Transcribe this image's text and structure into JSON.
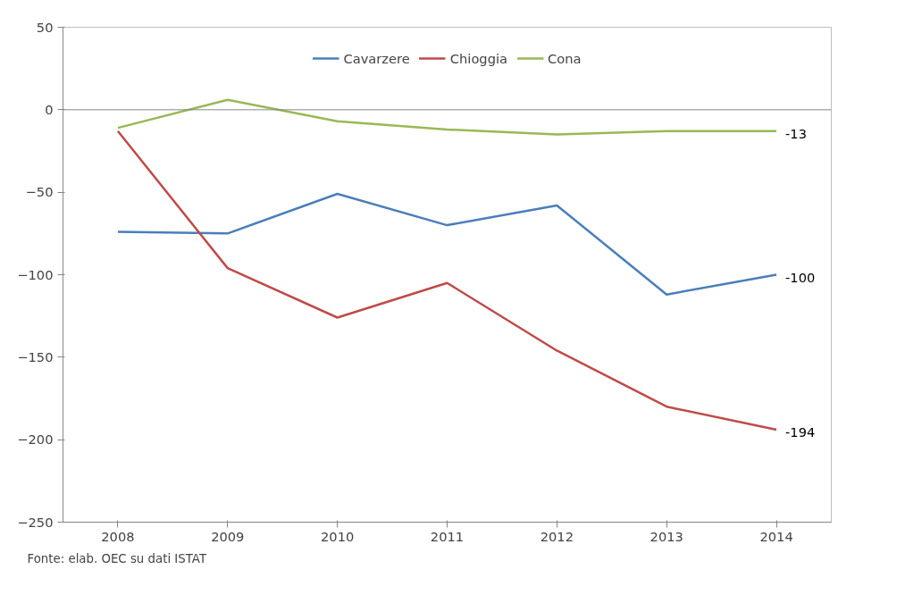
{
  "chart_data": {
    "type": "line",
    "categories": [
      "2008",
      "2009",
      "2010",
      "2011",
      "2012",
      "2013",
      "2014"
    ],
    "series": [
      {
        "name": "Cavarzere",
        "color": "#4a7ebb",
        "values": [
          -74,
          -75,
          -51,
          -70,
          -58,
          -112,
          -100
        ],
        "value_labels": [
          null,
          null,
          null,
          null,
          null,
          null,
          "-100"
        ]
      },
      {
        "name": "Chioggia",
        "color": "#be4b48",
        "values": [
          -13,
          -96,
          -126,
          -105,
          -146,
          -180,
          -194
        ],
        "value_labels": [
          null,
          null,
          null,
          null,
          null,
          null,
          "-194"
        ]
      },
      {
        "name": "Cona",
        "color": "#98b954",
        "values": [
          -11,
          6,
          -7,
          -12,
          -15,
          -13,
          -13
        ],
        "value_labels": [
          null,
          null,
          null,
          null,
          null,
          null,
          "-13"
        ]
      }
    ],
    "ylim": [
      -250,
      50
    ],
    "yticks": [
      -250,
      -200,
      -150,
      -100,
      -50,
      0,
      50
    ],
    "ref_lines": [
      {
        "axis": "y",
        "value": 0,
        "color": "#868686"
      }
    ],
    "grid": false,
    "legend": "top",
    "marker": "none",
    "line_style": "solid",
    "annotations": [
      "Fonte: elab. OEC su dati ISTAT"
    ]
  }
}
